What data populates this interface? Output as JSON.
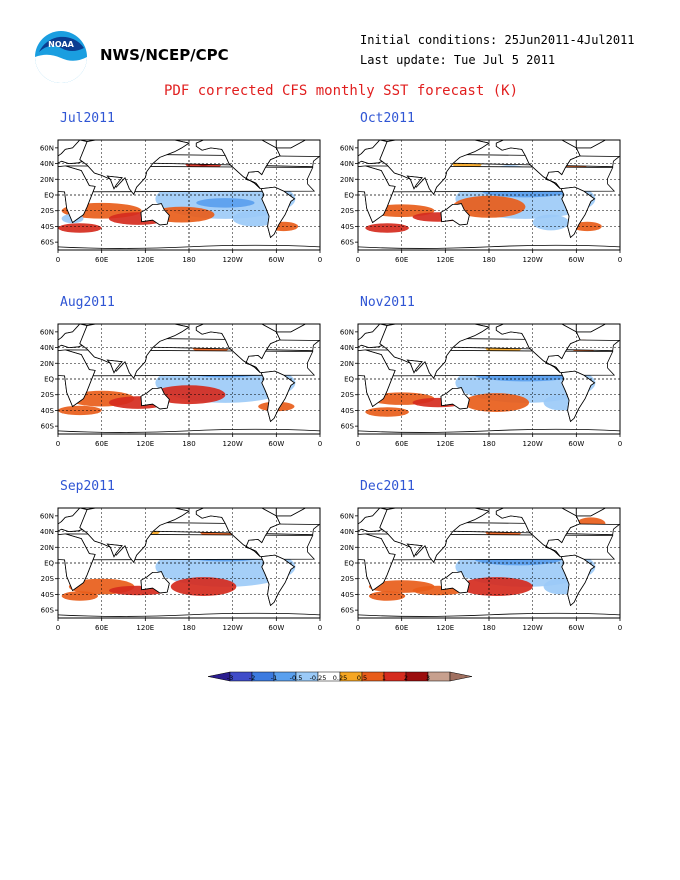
{
  "header": {
    "agency": "NWS/NCEP/CPC",
    "logo_text": "NOAA",
    "initial_conditions": "Initial conditions: 25Jun2011-4Jul2011",
    "last_update": "Last update: Tue Jul 5 2011",
    "title": "PDF corrected CFS monthly SST forecast (K)"
  },
  "axes": {
    "lat_labels": [
      "60N",
      "40N",
      "20N",
      "EQ",
      "20S",
      "40S",
      "60S"
    ],
    "lon_labels": [
      "0",
      "60E",
      "120E",
      "180",
      "120W",
      "60W",
      "0"
    ]
  },
  "panels": [
    {
      "month": "Jul2011"
    },
    {
      "month": "Oct2011"
    },
    {
      "month": "Aug2011"
    },
    {
      "month": "Nov2011"
    },
    {
      "month": "Sep2011"
    },
    {
      "month": "Dec2011"
    }
  ],
  "colorbar": {
    "labels": [
      "-3",
      "-2",
      "-1",
      "-0.5",
      "-0.25",
      "0.25",
      "0.5",
      "1",
      "2",
      "3"
    ],
    "colors": [
      "#2b1d8f",
      "#3f4cc9",
      "#3c7be0",
      "#5aa0ee",
      "#9bcaf7",
      "#ffffff",
      "#f5a623",
      "#e85d1a",
      "#d52b1e",
      "#9b0d0d",
      "#c7a08e",
      "#a07060"
    ]
  },
  "map_colors": {
    "warm_light": "#f5a623",
    "warm": "#e85d1a",
    "warm_dark": "#d52b1e",
    "warm_darkest": "#9b0d0d",
    "cool_light": "#9bcaf7",
    "cool": "#5aa0ee",
    "cool_dark": "#3c7be0"
  }
}
